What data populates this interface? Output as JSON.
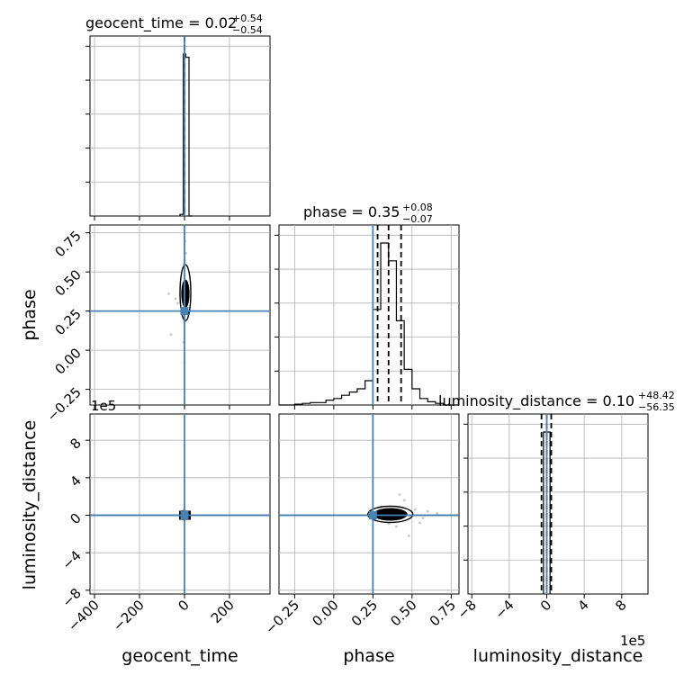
{
  "chart_data": {
    "type": "corner",
    "parameters": [
      "geocent_time",
      "phase",
      "luminosity_distance"
    ],
    "titles": [
      {
        "param": "geocent_time",
        "label": "geocent_time = 0.02",
        "plus": "+0.54",
        "minus": "−0.54"
      },
      {
        "param": "phase",
        "label": "phase = 0.35",
        "plus": "+0.08",
        "minus": "−0.07"
      },
      {
        "param": "luminosity_distance",
        "label": "luminosity_distance = 0.10",
        "plus": "+48.42",
        "minus": "−56.35"
      }
    ],
    "axis_ranges": {
      "geocent_time": [
        -420,
        380
      ],
      "phase": [
        -0.35,
        0.8
      ],
      "luminosity_distance": [
        -8.4,
        10.8
      ]
    },
    "tick_labels": {
      "geocent_time": [
        "−400",
        "−200",
        "0",
        "200"
      ],
      "phase": [
        "−0.25",
        "0.00",
        "0.25",
        "0.50",
        "0.75"
      ],
      "luminosity_distance": [
        "−8",
        "−4",
        "0",
        "4",
        "8"
      ]
    },
    "tick_values": {
      "geocent_time": [
        -400,
        -200,
        0,
        200
      ],
      "phase": [
        -0.25,
        0.0,
        0.25,
        0.5,
        0.75
      ],
      "luminosity_distance": [
        -8,
        -4,
        0,
        4,
        8
      ]
    },
    "offset_label": "1e5",
    "truths": {
      "geocent_time": 0,
      "phase": 0.25,
      "luminosity_distance": 0
    },
    "quantiles": {
      "geocent_time": [
        -0.52,
        0.02,
        0.56
      ],
      "phase": [
        0.28,
        0.35,
        0.43
      ],
      "luminosity_distance": [
        -0.56,
        0.001,
        0.48
      ]
    },
    "histograms": {
      "geocent_time": {
        "edges": [
          -20,
          -5,
          5,
          20,
          35
        ],
        "values": [
          0.01,
          1.0,
          0.98,
          0.0
        ]
      },
      "phase": {
        "edges": [
          -0.35,
          -0.3,
          -0.25,
          -0.2,
          -0.15,
          -0.1,
          -0.05,
          0.0,
          0.05,
          0.1,
          0.15,
          0.2,
          0.25,
          0.3,
          0.35,
          0.4,
          0.45,
          0.5,
          0.55,
          0.6,
          0.65,
          0.7,
          0.75,
          0.8
        ],
        "values": [
          0.0,
          0.0,
          0.005,
          0.01,
          0.015,
          0.015,
          0.03,
          0.04,
          0.06,
          0.08,
          0.1,
          0.15,
          0.59,
          1.0,
          0.89,
          0.52,
          0.22,
          0.1,
          0.04,
          0.02,
          0.01,
          0.0,
          0.0
        ]
      },
      "luminosity_distance": {
        "edges": [
          -0.35,
          0.35
        ],
        "values": [
          1.0
        ]
      }
    },
    "scatter_points": {
      "geocent_time_phase": [
        [
          -5,
          0.32
        ],
        [
          8,
          0.4
        ],
        [
          -12,
          0.28
        ],
        [
          4,
          0.45
        ],
        [
          -3,
          0.2
        ],
        [
          10,
          0.3
        ],
        [
          -60,
          0.1
        ],
        [
          -2,
          0.55
        ],
        [
          6,
          0.62
        ],
        [
          -1,
          0.18
        ],
        [
          14,
          0.36
        ],
        [
          -20,
          0.35
        ],
        [
          -70,
          0.36
        ],
        [
          2,
          0.7
        ],
        [
          -4,
          0.05
        ],
        [
          -40,
          0.33
        ],
        [
          -30,
          0.3
        ],
        [
          0,
          -0.08
        ]
      ],
      "phase_luminosity_distance": [
        [
          0.45,
          1.6
        ],
        [
          0.4,
          -1.2
        ],
        [
          0.52,
          0.6
        ],
        [
          0.3,
          0.9
        ],
        [
          0.55,
          -0.8
        ],
        [
          0.6,
          0.4
        ],
        [
          0.48,
          -2.2
        ],
        [
          0.35,
          -0.9
        ],
        [
          0.42,
          2.2
        ],
        [
          0.57,
          -0.3
        ],
        [
          0.66,
          0.2
        ],
        [
          0.25,
          -0.4
        ],
        [
          0.38,
          0.5
        ]
      ],
      "geocent_time_luminosity_distance": [
        [
          -10,
          0.4
        ],
        [
          12,
          -0.3
        ],
        [
          -4,
          0.6
        ],
        [
          8,
          0.2
        ],
        [
          0,
          -0.5
        ]
      ]
    },
    "contour_levels": [
      "1σ",
      "2σ"
    ],
    "colors": {
      "truth": "#4682b4",
      "contour": "#000000",
      "scatter": "#9a9a9a",
      "grid": "#b0b0b0"
    },
    "grid": true
  }
}
